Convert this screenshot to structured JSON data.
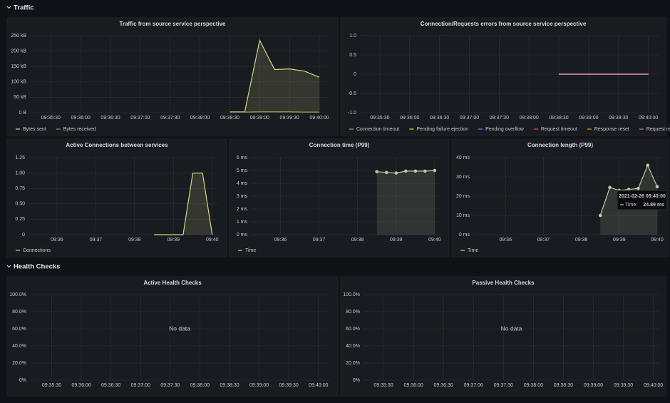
{
  "rows": [
    {
      "title": "Traffic"
    },
    {
      "title": "Health Checks"
    }
  ],
  "chart_data": [
    {
      "type": "line",
      "title": "Traffic from source service perspective",
      "x": [
        "09:38:30",
        "09:38:45",
        "09:39:00",
        "09:39:15",
        "09:39:30",
        "09:39:45",
        "09:40:00"
      ],
      "series": [
        {
          "name": "Bytes sent",
          "color": "#d6d68a",
          "values": [
            3,
            3,
            235,
            140,
            142,
            135,
            115
          ]
        },
        {
          "name": "Bytes received",
          "color": "#8f9e5a",
          "values": [
            2,
            2,
            3,
            3,
            3,
            2,
            2
          ]
        }
      ],
      "xlim": [
        "09:35:09",
        "09:40:10"
      ],
      "xticks": [
        "09:35:30",
        "09:36:00",
        "09:36:30",
        "09:37:00",
        "09:37:30",
        "09:38:00",
        "09:38:30",
        "09:39:00",
        "09:39:30",
        "09:40:00"
      ],
      "ylim": [
        0,
        250
      ],
      "yticks": [
        {
          "value": 0,
          "label": "0 B"
        },
        {
          "value": 50,
          "label": "50 kB"
        },
        {
          "value": 100,
          "label": "100 kB"
        },
        {
          "value": 150,
          "label": "150 kB"
        },
        {
          "value": 200,
          "label": "200 kB"
        },
        {
          "value": 250,
          "label": "250 kB"
        }
      ],
      "grid": true,
      "area": true,
      "points": false,
      "legend": "bottom"
    },
    {
      "type": "line",
      "title": "Connection/Requests errors from source service perspective",
      "x": [
        "09:38:30",
        "09:40:00"
      ],
      "series": [
        {
          "name": "Connection timeout",
          "color": "#73bf69",
          "values": [
            0,
            0
          ]
        },
        {
          "name": "Pending failure ejection",
          "color": "#fade2a",
          "values": [
            0,
            0
          ]
        },
        {
          "name": "Pending overflow",
          "color": "#5794f2",
          "values": [
            0,
            0
          ]
        },
        {
          "name": "Request timeout",
          "color": "#f2495c",
          "values": [
            0,
            0
          ]
        },
        {
          "name": "Response reset",
          "color": "#ff9830",
          "values": [
            0,
            0
          ]
        },
        {
          "name": "Request reset",
          "color": "#b877d9",
          "values": [
            0,
            0
          ]
        }
      ],
      "xlim": [
        "09:35:10",
        "09:40:11"
      ],
      "xticks": [
        "09:35:30",
        "09:36:00",
        "09:36:30",
        "09:37:00",
        "09:37:30",
        "09:38:00",
        "09:38:30",
        "09:39:00",
        "09:39:30",
        "09:40:00"
      ],
      "ylim": [
        -1,
        1
      ],
      "yticks": [
        {
          "value": -1,
          "label": "-1.0"
        },
        {
          "value": -0.5,
          "label": "-0.5"
        },
        0,
        {
          "value": 0.5,
          "label": "0.5"
        },
        {
          "value": 1,
          "label": "1.0"
        }
      ],
      "grid": true,
      "area": false,
      "points": false,
      "legend": "bottom"
    },
    {
      "type": "line",
      "title": "Active Connections between services",
      "x": [
        "09:38:30",
        "09:38:45",
        "09:39:00",
        "09:39:15",
        "09:39:30",
        "09:39:45",
        "09:40:00"
      ],
      "series": [
        {
          "name": "Connections",
          "color": "#d6d68a",
          "values": [
            0,
            0,
            0,
            0,
            1,
            1,
            0
          ]
        }
      ],
      "xlim": [
        "09:35:16",
        "09:40:08"
      ],
      "xticks": [
        "09:36",
        "09:37",
        "09:38",
        "09:39",
        "09:40"
      ],
      "ylim": [
        0,
        1.25
      ],
      "yticks": [
        0,
        0.25,
        {
          "value": 0.5,
          "label": "0.50"
        },
        0.75,
        {
          "value": 1,
          "label": "1.00"
        },
        1.25
      ],
      "grid": true,
      "area": true,
      "points": false,
      "legend": "bottom"
    },
    {
      "type": "line",
      "title": "Connection time (P99)",
      "x": [
        "09:38:30",
        "09:38:45",
        "09:39:00",
        "09:39:15",
        "09:39:30",
        "09:39:45",
        "09:40:00"
      ],
      "series": [
        {
          "name": "Time",
          "color": "#b9cc9e",
          "values": [
            4.9,
            4.85,
            4.8,
            4.95,
            4.95,
            4.95,
            5.0
          ]
        }
      ],
      "xlim": [
        "09:35:14",
        "09:40:09"
      ],
      "xticks": [
        "09:36",
        "09:37",
        "09:38",
        "09:39",
        "09:40"
      ],
      "ylim": [
        0,
        6
      ],
      "yticks": [
        {
          "value": 0,
          "label": "0 ms"
        },
        {
          "value": 1,
          "label": "1 ms"
        },
        {
          "value": 2,
          "label": "2 ms"
        },
        {
          "value": 3,
          "label": "3 ms"
        },
        {
          "value": 4,
          "label": "4 ms"
        },
        {
          "value": 5,
          "label": "5 ms"
        },
        {
          "value": 6,
          "label": "6 ms"
        }
      ],
      "grid": true,
      "area": true,
      "points": true,
      "legend": "bottom"
    },
    {
      "type": "line",
      "title": "Connection length (P99)",
      "x": [
        "09:38:30",
        "09:38:45",
        "09:39:00",
        "09:39:15",
        "09:39:30",
        "09:39:45",
        "09:40:00"
      ],
      "series": [
        {
          "name": "Time",
          "color": "#b9cc9e",
          "values": [
            10,
            24.5,
            23,
            23.5,
            24,
            36,
            24.89
          ]
        }
      ],
      "xlim": [
        "09:35:09",
        "09:40:09"
      ],
      "xticks": [
        "09:36",
        "09:37",
        "09:38",
        "09:39",
        "09:40"
      ],
      "ylim": [
        0,
        40
      ],
      "yticks": [
        {
          "value": 0,
          "label": "0 ms"
        },
        {
          "value": 10,
          "label": "10 ms"
        },
        {
          "value": 20,
          "label": "20 ms"
        },
        {
          "value": 30,
          "label": "30 ms"
        },
        {
          "value": 40,
          "label": "40 ms"
        }
      ],
      "grid": true,
      "area": true,
      "points": true,
      "legend": "bottom",
      "tooltip": {
        "title": "2021-02-26 09:40:00",
        "label": "Time:",
        "value_label": "24.89 ms"
      }
    },
    {
      "type": "line",
      "title": "Active Health Checks",
      "series": [],
      "annotation": "No data",
      "xlim": [
        "09:35:08",
        "09:40:11"
      ],
      "xticks": [
        "09:35:30",
        "09:36:00",
        "09:36:30",
        "09:37:00",
        "09:37:30",
        "09:38:00",
        "09:38:30",
        "09:39:00",
        "09:39:30",
        "09:40:00"
      ],
      "ylim": [
        0,
        100
      ],
      "yticks": [
        {
          "value": 0,
          "label": "0%"
        },
        {
          "value": 20,
          "label": "20.0%"
        },
        {
          "value": 40,
          "label": "40.0%"
        },
        {
          "value": 60,
          "label": "60.0%"
        },
        {
          "value": 80,
          "label": "80.0%"
        },
        {
          "value": 100,
          "label": "100.0%"
        }
      ],
      "grid": true
    },
    {
      "type": "line",
      "title": "Passive Health Checks",
      "series": [],
      "annotation": "No data",
      "xlim": [
        "09:35:10",
        "09:40:06"
      ],
      "xticks": [
        "09:35:30",
        "09:36:00",
        "09:36:30",
        "09:37:00",
        "09:37:30",
        "09:38:00",
        "09:38:30",
        "09:39:00",
        "09:39:30",
        "09:40:00"
      ],
      "ylim": [
        0,
        100
      ],
      "yticks": [
        {
          "value": 0,
          "label": "0%"
        },
        {
          "value": 20,
          "label": "20.0%"
        },
        {
          "value": 40,
          "label": "40.0%"
        },
        {
          "value": 60,
          "label": "60.0%"
        },
        {
          "value": 80,
          "label": "80.0%"
        },
        {
          "value": 100,
          "label": "100.0%"
        }
      ],
      "grid": true
    }
  ]
}
